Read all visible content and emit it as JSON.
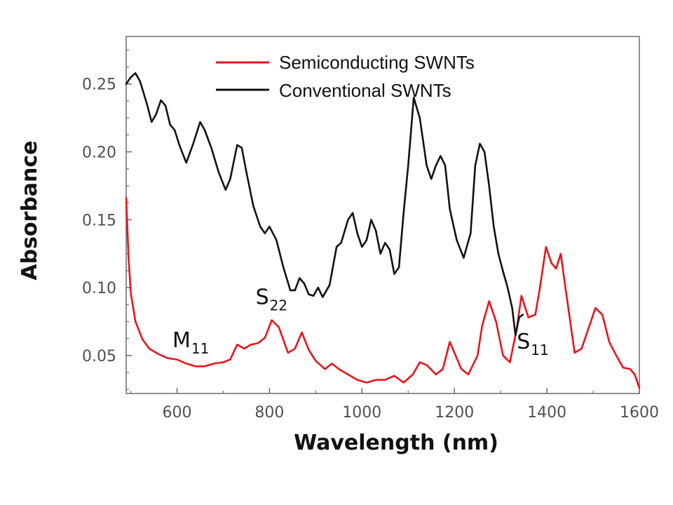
{
  "chart_data": {
    "type": "line",
    "title": "",
    "xlabel": "Wavelength (nm)",
    "ylabel": "Absorbance",
    "xlim": [
      490,
      1600
    ],
    "ylim": [
      0.022,
      0.285
    ],
    "xticks": [
      600,
      800,
      1000,
      1200,
      1400,
      1600
    ],
    "yticks": [
      0.05,
      0.1,
      0.15,
      0.2,
      0.25
    ],
    "ytick_labels": [
      "0.05",
      "0.10",
      "0.15",
      "0.20",
      "0.25"
    ],
    "grid": false,
    "legend_position": "top-center",
    "series": [
      {
        "name": "Semiconducting SWNTs",
        "color": "#e8141c",
        "points": [
          [
            490,
            0.166
          ],
          [
            495,
            0.123
          ],
          [
            500,
            0.096
          ],
          [
            510,
            0.075
          ],
          [
            525,
            0.062
          ],
          [
            540,
            0.055
          ],
          [
            560,
            0.051
          ],
          [
            580,
            0.048
          ],
          [
            600,
            0.047
          ],
          [
            620,
            0.044
          ],
          [
            640,
            0.042
          ],
          [
            660,
            0.042
          ],
          [
            680,
            0.044
          ],
          [
            700,
            0.045
          ],
          [
            715,
            0.047
          ],
          [
            730,
            0.058
          ],
          [
            745,
            0.055
          ],
          [
            760,
            0.058
          ],
          [
            775,
            0.059
          ],
          [
            790,
            0.063
          ],
          [
            805,
            0.076
          ],
          [
            820,
            0.071
          ],
          [
            840,
            0.052
          ],
          [
            855,
            0.055
          ],
          [
            870,
            0.067
          ],
          [
            885,
            0.054
          ],
          [
            900,
            0.046
          ],
          [
            920,
            0.04
          ],
          [
            935,
            0.044
          ],
          [
            950,
            0.04
          ],
          [
            970,
            0.036
          ],
          [
            990,
            0.032
          ],
          [
            1010,
            0.03
          ],
          [
            1030,
            0.032
          ],
          [
            1050,
            0.032
          ],
          [
            1070,
            0.035
          ],
          [
            1090,
            0.03
          ],
          [
            1110,
            0.036
          ],
          [
            1125,
            0.045
          ],
          [
            1140,
            0.043
          ],
          [
            1160,
            0.036
          ],
          [
            1175,
            0.04
          ],
          [
            1190,
            0.06
          ],
          [
            1200,
            0.052
          ],
          [
            1215,
            0.04
          ],
          [
            1230,
            0.036
          ],
          [
            1250,
            0.05
          ],
          [
            1260,
            0.072
          ],
          [
            1275,
            0.09
          ],
          [
            1290,
            0.075
          ],
          [
            1305,
            0.05
          ],
          [
            1320,
            0.045
          ],
          [
            1335,
            0.07
          ],
          [
            1345,
            0.094
          ],
          [
            1360,
            0.078
          ],
          [
            1375,
            0.08
          ],
          [
            1385,
            0.1
          ],
          [
            1398,
            0.13
          ],
          [
            1410,
            0.118
          ],
          [
            1420,
            0.114
          ],
          [
            1430,
            0.125
          ],
          [
            1440,
            0.1
          ],
          [
            1460,
            0.052
          ],
          [
            1475,
            0.055
          ],
          [
            1490,
            0.07
          ],
          [
            1505,
            0.085
          ],
          [
            1520,
            0.08
          ],
          [
            1535,
            0.06
          ],
          [
            1550,
            0.05
          ],
          [
            1565,
            0.041
          ],
          [
            1580,
            0.04
          ],
          [
            1590,
            0.036
          ],
          [
            1600,
            0.026
          ]
        ]
      },
      {
        "name": "Conventional SWNTs",
        "color": "#111111",
        "points": [
          [
            490,
            0.25
          ],
          [
            500,
            0.255
          ],
          [
            510,
            0.258
          ],
          [
            520,
            0.252
          ],
          [
            535,
            0.235
          ],
          [
            545,
            0.222
          ],
          [
            555,
            0.228
          ],
          [
            565,
            0.238
          ],
          [
            575,
            0.234
          ],
          [
            585,
            0.22
          ],
          [
            595,
            0.216
          ],
          [
            605,
            0.205
          ],
          [
            620,
            0.192
          ],
          [
            635,
            0.206
          ],
          [
            650,
            0.222
          ],
          [
            660,
            0.216
          ],
          [
            675,
            0.202
          ],
          [
            690,
            0.185
          ],
          [
            705,
            0.172
          ],
          [
            715,
            0.18
          ],
          [
            730,
            0.205
          ],
          [
            740,
            0.203
          ],
          [
            750,
            0.185
          ],
          [
            765,
            0.16
          ],
          [
            780,
            0.145
          ],
          [
            790,
            0.14
          ],
          [
            800,
            0.145
          ],
          [
            815,
            0.135
          ],
          [
            830,
            0.115
          ],
          [
            845,
            0.098
          ],
          [
            855,
            0.098
          ],
          [
            865,
            0.107
          ],
          [
            875,
            0.103
          ],
          [
            885,
            0.095
          ],
          [
            895,
            0.094
          ],
          [
            905,
            0.1
          ],
          [
            915,
            0.093
          ],
          [
            930,
            0.102
          ],
          [
            945,
            0.13
          ],
          [
            955,
            0.133
          ],
          [
            970,
            0.15
          ],
          [
            980,
            0.155
          ],
          [
            990,
            0.14
          ],
          [
            1000,
            0.13
          ],
          [
            1010,
            0.135
          ],
          [
            1020,
            0.15
          ],
          [
            1030,
            0.142
          ],
          [
            1040,
            0.125
          ],
          [
            1050,
            0.133
          ],
          [
            1060,
            0.128
          ],
          [
            1070,
            0.11
          ],
          [
            1080,
            0.115
          ],
          [
            1090,
            0.155
          ],
          [
            1100,
            0.19
          ],
          [
            1112,
            0.24
          ],
          [
            1125,
            0.225
          ],
          [
            1140,
            0.19
          ],
          [
            1150,
            0.18
          ],
          [
            1160,
            0.19
          ],
          [
            1170,
            0.197
          ],
          [
            1180,
            0.19
          ],
          [
            1190,
            0.158
          ],
          [
            1205,
            0.135
          ],
          [
            1220,
            0.122
          ],
          [
            1235,
            0.14
          ],
          [
            1245,
            0.19
          ],
          [
            1255,
            0.206
          ],
          [
            1265,
            0.2
          ],
          [
            1275,
            0.175
          ],
          [
            1285,
            0.145
          ],
          [
            1295,
            0.125
          ],
          [
            1305,
            0.112
          ],
          [
            1315,
            0.1
          ],
          [
            1325,
            0.085
          ],
          [
            1332,
            0.065
          ],
          [
            1340,
            0.078
          ],
          [
            1348,
            0.08
          ]
        ]
      }
    ],
    "annotations": [
      {
        "main": "M",
        "sub": "11",
        "x": 590,
        "y": 0.056
      },
      {
        "main": "S",
        "sub": "22",
        "x": 770,
        "y": 0.088
      },
      {
        "main": "S",
        "sub": "11",
        "x": 1335,
        "y": 0.055
      }
    ]
  }
}
